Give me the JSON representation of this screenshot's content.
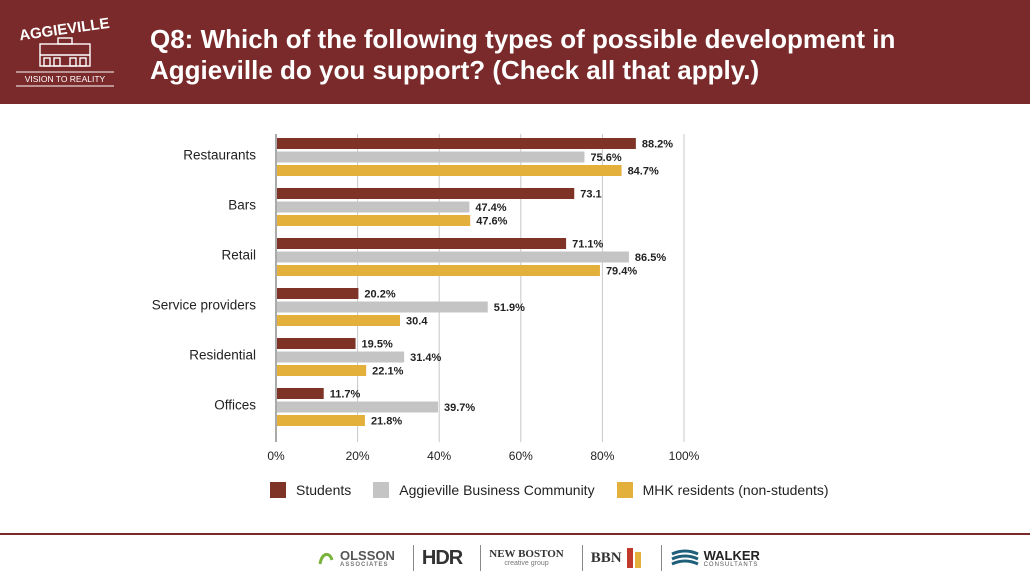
{
  "header": {
    "title": "Q8: Which of the following types of possible development in Aggieville do you support? (Check all that apply.)",
    "logo_text": "AGGIEVILLE",
    "logo_tagline": "VISION TO REALITY"
  },
  "colors": {
    "header_bg": "#7a2a2a",
    "students": "#7f3326",
    "business": "#c4c4c4",
    "residents": "#e3b03c"
  },
  "chart_data": {
    "type": "bar",
    "orientation": "horizontal",
    "categories": [
      "Restaurants",
      "Bars",
      "Retail",
      "Service providers",
      "Residential",
      "Offices"
    ],
    "series": [
      {
        "name": "Students",
        "color": "#7f3326",
        "values": [
          88.2,
          73.1,
          71.1,
          20.2,
          19.5,
          11.7
        ],
        "labels": [
          "88.2%",
          "73.1",
          "71.1%",
          "20.2%",
          "19.5%",
          "11.7%"
        ]
      },
      {
        "name": "Aggieville Business Community",
        "color": "#c4c4c4",
        "values": [
          75.6,
          47.4,
          86.5,
          51.9,
          31.4,
          39.7
        ],
        "labels": [
          "75.6%",
          "47.4%",
          "86.5%",
          "51.9%",
          "31.4%",
          "39.7%"
        ]
      },
      {
        "name": "MHK residents (non-students)",
        "color": "#e3b03c",
        "values": [
          84.7,
          47.6,
          79.4,
          30.4,
          22.1,
          21.8
        ],
        "labels": [
          "84.7%",
          "47.6%",
          "79.4%",
          "30.4",
          "22.1%",
          "21.8%"
        ]
      }
    ],
    "xlim": [
      0,
      100
    ],
    "xticks": [
      "0%",
      "20%",
      "40%",
      "60%",
      "80%",
      "100%"
    ],
    "legend_position": "bottom"
  },
  "footer": {
    "logos": [
      "OLSSON",
      "ASSOCIATES",
      "HDR",
      "NEW BOSTON",
      "creative group",
      "BBN",
      "WALKER",
      "CONSULTANTS"
    ]
  }
}
